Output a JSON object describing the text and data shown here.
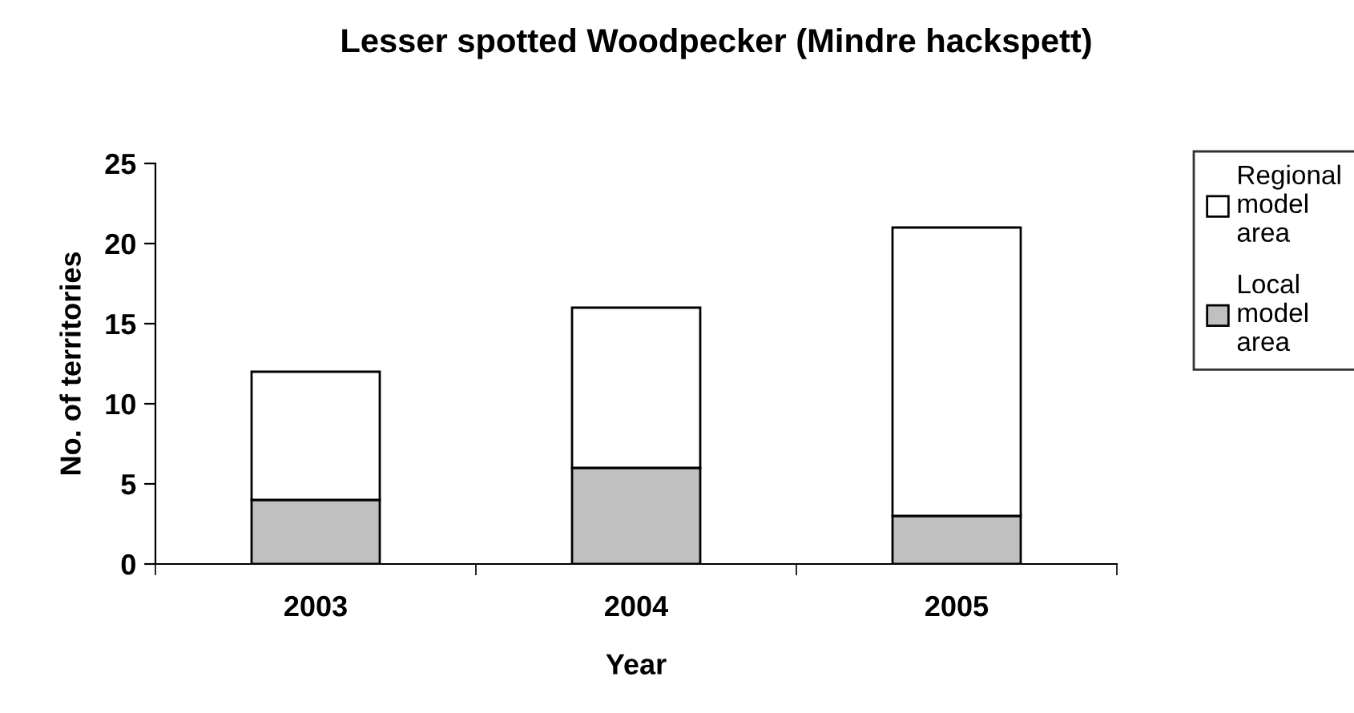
{
  "chart_data": {
    "type": "bar",
    "title": "Lesser spotted Woodpecker (Mindre hackspett)",
    "xlabel": "Year",
    "ylabel": "No. of territories",
    "categories": [
      "2003",
      "2004",
      "2005"
    ],
    "stacked": true,
    "series": [
      {
        "name": "Local model area",
        "color": "#c0c0c0",
        "values": [
          4,
          6,
          3
        ]
      },
      {
        "name": "Regional model area",
        "color": "#ffffff",
        "values": [
          8,
          10,
          18
        ]
      }
    ],
    "ylim": [
      0,
      25
    ],
    "yticks": [
      0,
      5,
      10,
      15,
      20,
      25
    ],
    "grid": false,
    "legend": "right"
  }
}
